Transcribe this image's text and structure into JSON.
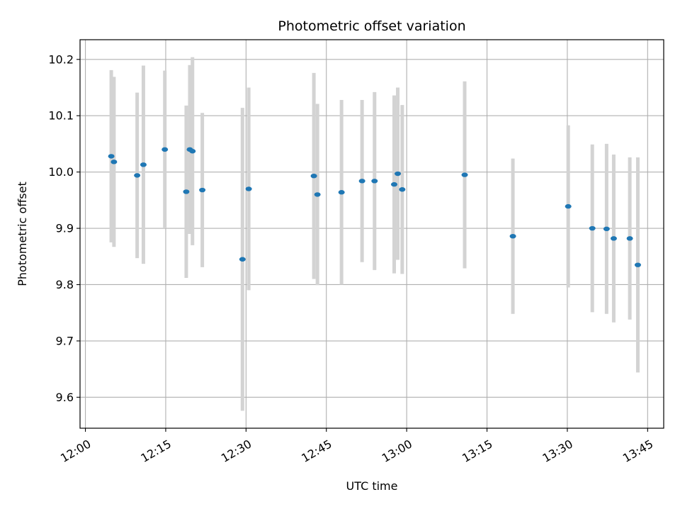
{
  "chart_data": {
    "type": "scatter",
    "title": "Photometric offset variation",
    "xlabel": "UTC time",
    "ylabel": "Photometric offset",
    "xlim": [
      "11:59",
      "13:48"
    ],
    "ylim": [
      9.545,
      10.235
    ],
    "grid": true,
    "x_ticks": [
      "12:00",
      "12:15",
      "12:30",
      "12:45",
      "13:00",
      "13:15",
      "13:30",
      "13:45"
    ],
    "y_ticks": [
      9.6,
      9.7,
      9.8,
      9.9,
      10.0,
      10.1,
      10.2
    ],
    "y_tick_labels": [
      "9.6",
      "9.7",
      "9.8",
      "9.9",
      "10.0",
      "10.1",
      "10.2"
    ],
    "colors": {
      "point": "#1f77b4",
      "errorbar": "#d3d3d3",
      "grid": "#b0b0b0"
    },
    "points": [
      {
        "time": "12:04:50",
        "y": 10.028,
        "err": 0.153
      },
      {
        "time": "12:05:20",
        "y": 10.018,
        "err": 0.151
      },
      {
        "time": "12:09:40",
        "y": 9.994,
        "err": 0.147
      },
      {
        "time": "12:10:50",
        "y": 10.013,
        "err": 0.176
      },
      {
        "time": "12:14:50",
        "y": 10.04,
        "err": 0.14
      },
      {
        "time": "12:18:50",
        "y": 9.965,
        "err": 0.153
      },
      {
        "time": "12:19:30",
        "y": 10.04,
        "err": 0.15
      },
      {
        "time": "12:20:00",
        "y": 10.037,
        "err": 0.167
      },
      {
        "time": "12:21:50",
        "y": 9.968,
        "err": 0.137
      },
      {
        "time": "12:29:20",
        "y": 9.845,
        "err": 0.269
      },
      {
        "time": "12:30:30",
        "y": 9.97,
        "err": 0.18
      },
      {
        "time": "12:42:40",
        "y": 9.993,
        "err": 0.183
      },
      {
        "time": "12:43:20",
        "y": 9.96,
        "err": 0.161
      },
      {
        "time": "12:47:50",
        "y": 9.964,
        "err": 0.164
      },
      {
        "time": "12:51:40",
        "y": 9.984,
        "err": 0.144
      },
      {
        "time": "12:54:00",
        "y": 9.984,
        "err": 0.158
      },
      {
        "time": "12:57:40",
        "y": 9.978,
        "err": 0.158
      },
      {
        "time": "12:58:20",
        "y": 9.997,
        "err": 0.153
      },
      {
        "time": "12:59:10",
        "y": 9.969,
        "err": 0.15
      },
      {
        "time": "13:10:50",
        "y": 9.995,
        "err": 0.166
      },
      {
        "time": "13:19:50",
        "y": 9.886,
        "err": 0.138
      },
      {
        "time": "13:30:10",
        "y": 9.939,
        "err": 0.144
      },
      {
        "time": "13:34:40",
        "y": 9.9,
        "err": 0.149
      },
      {
        "time": "13:37:20",
        "y": 9.899,
        "err": 0.151
      },
      {
        "time": "13:38:40",
        "y": 9.882,
        "err": 0.149
      },
      {
        "time": "13:41:40",
        "y": 9.882,
        "err": 0.144
      },
      {
        "time": "13:43:10",
        "y": 9.835,
        "err": 0.191
      }
    ]
  }
}
